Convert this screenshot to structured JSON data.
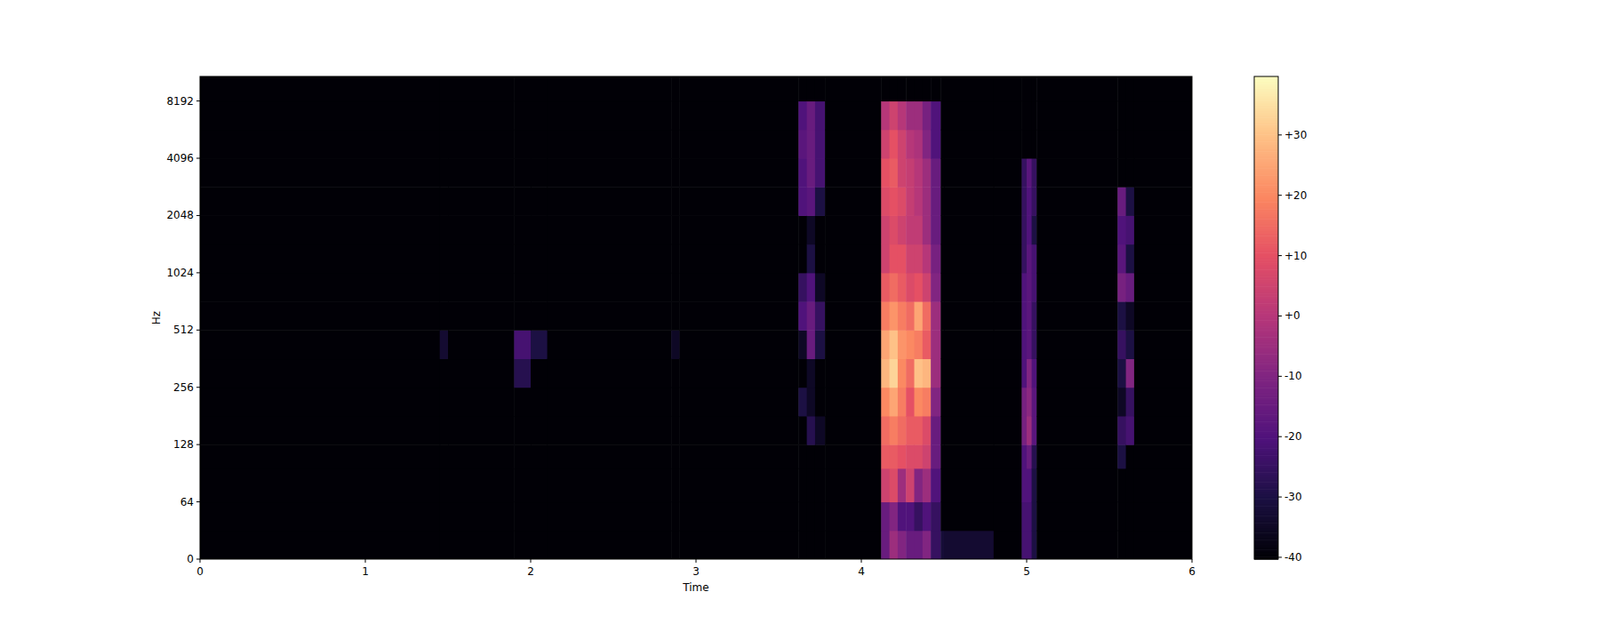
{
  "chart_data": {
    "type": "heatmap",
    "x_label": "Time",
    "y_label": "Hz",
    "log": "y",
    "xlim": [
      0,
      6
    ],
    "ylim": [
      0,
      11025
    ],
    "xticks": [
      0,
      1,
      2,
      3,
      4,
      5,
      6
    ],
    "yticks": [
      0,
      64,
      128,
      256,
      512,
      1024,
      2048,
      4096,
      8192
    ],
    "x_edges": [
      0,
      1.45,
      1.5,
      1.9,
      2.0,
      2.1,
      2.85,
      2.9,
      3.62,
      3.67,
      3.72,
      3.78,
      4.12,
      4.17,
      4.22,
      4.27,
      4.32,
      4.37,
      4.42,
      4.48,
      4.5,
      4.8,
      4.97,
      5.0,
      5.03,
      5.06,
      5.55,
      5.6,
      5.65,
      6.0
    ],
    "y_edges": [
      0,
      32,
      64,
      96,
      128,
      181,
      256,
      362,
      512,
      724,
      1024,
      1448,
      2048,
      2896,
      4096,
      5793,
      8192,
      11025
    ],
    "values": [
      [
        -40,
        -40,
        -40,
        -40,
        -40,
        -40,
        -40,
        -40,
        -40,
        -40,
        -40,
        -40,
        -40,
        -40,
        -40,
        -40,
        -40
      ],
      [
        -40,
        -40,
        -40,
        -40,
        -40,
        -40,
        -40,
        -33,
        -40,
        -40,
        -40,
        -40,
        -40,
        -40,
        -40,
        -40,
        -40
      ],
      [
        -40,
        -40,
        -40,
        -40,
        -40,
        -40,
        -40,
        -40,
        -40,
        -40,
        -40,
        -40,
        -40,
        -40,
        -40,
        -40,
        -40
      ],
      [
        -40,
        -40,
        -40,
        -40,
        -40,
        -40,
        -28,
        -22,
        -40,
        -40,
        -40,
        -40,
        -40,
        -40,
        -40,
        -40,
        -40
      ],
      [
        -40,
        -40,
        -40,
        -40,
        -40,
        -40,
        -40,
        -30,
        -40,
        -40,
        -40,
        -40,
        -40,
        -40,
        -40,
        -40,
        -40
      ],
      [
        -40,
        -40,
        -40,
        -40,
        -40,
        -40,
        -40,
        -40,
        -40,
        -40,
        -40,
        -40,
        -40,
        -40,
        -40,
        -40,
        -40
      ],
      [
        -40,
        -40,
        -40,
        -40,
        -40,
        -40,
        -40,
        -35,
        -40,
        -40,
        -40,
        -40,
        -40,
        -40,
        -40,
        -40,
        -40
      ],
      [
        -40,
        -40,
        -40,
        -40,
        -40,
        -40,
        -40,
        -40,
        -40,
        -40,
        -40,
        -40,
        -40,
        -40,
        -40,
        -40,
        -40
      ],
      [
        -40,
        -40,
        -40,
        -40,
        -40,
        -30,
        -40,
        -35,
        -20,
        -25,
        -40,
        -40,
        -20,
        -20,
        -18,
        -20,
        -40
      ],
      [
        -40,
        -40,
        -40,
        -40,
        -28,
        -35,
        -35,
        -15,
        -15,
        -20,
        -30,
        -35,
        -18,
        -15,
        -15,
        -15,
        -40
      ],
      [
        -40,
        -40,
        -40,
        -40,
        -35,
        -40,
        -40,
        -30,
        -25,
        -35,
        -40,
        -40,
        -30,
        -22,
        -22,
        -22,
        -40
      ],
      [
        -40,
        -40,
        -40,
        -40,
        -40,
        -40,
        -40,
        -40,
        -40,
        -40,
        -40,
        -40,
        -40,
        -40,
        -40,
        -40,
        -40
      ],
      [
        -15,
        -15,
        5,
        12,
        15,
        20,
        28,
        25,
        18,
        12,
        5,
        5,
        8,
        10,
        5,
        0,
        -40
      ],
      [
        -5,
        -10,
        8,
        12,
        18,
        25,
        33,
        30,
        22,
        15,
        10,
        8,
        10,
        12,
        10,
        5,
        -40
      ],
      [
        -10,
        -20,
        -5,
        10,
        15,
        18,
        20,
        22,
        18,
        12,
        10,
        5,
        8,
        5,
        5,
        0,
        -40
      ],
      [
        -15,
        -20,
        5,
        8,
        12,
        10,
        15,
        20,
        15,
        8,
        5,
        2,
        3,
        3,
        0,
        -5,
        -40
      ],
      [
        -15,
        -25,
        -10,
        8,
        12,
        20,
        30,
        18,
        25,
        10,
        5,
        2,
        0,
        0,
        -2,
        -5,
        -40
      ],
      [
        -10,
        -20,
        -5,
        5,
        8,
        18,
        28,
        12,
        15,
        5,
        0,
        -5,
        -5,
        -5,
        -10,
        -12,
        -40
      ],
      [
        -25,
        -25,
        -20,
        -15,
        -15,
        -10,
        -5,
        -5,
        -5,
        -10,
        -12,
        -15,
        -15,
        -15,
        -20,
        -20,
        -40
      ],
      [
        -32,
        -40,
        -40,
        -40,
        -40,
        -40,
        -40,
        -40,
        -40,
        -40,
        -40,
        -40,
        -40,
        -40,
        -40,
        -40,
        -40
      ],
      [
        -33,
        -40,
        -40,
        -40,
        -40,
        -40,
        -40,
        -40,
        -40,
        -40,
        -40,
        -40,
        -40,
        -40,
        -40,
        -40,
        -40
      ],
      [
        -40,
        -40,
        -40,
        -40,
        -40,
        -40,
        -40,
        -40,
        -40,
        -40,
        -40,
        -40,
        -40,
        -40,
        -40,
        -40,
        -40
      ],
      [
        -22,
        -22,
        -20,
        -20,
        -12,
        -12,
        -20,
        -20,
        -20,
        -20,
        -25,
        -25,
        -25,
        -25,
        -40,
        -40,
        -40
      ],
      [
        -22,
        -22,
        -20,
        -15,
        -5,
        -8,
        -10,
        -18,
        -18,
        -18,
        -18,
        -20,
        -20,
        -18,
        -40,
        -40,
        -40
      ],
      [
        -30,
        -30,
        -30,
        -28,
        -18,
        -18,
        -20,
        -25,
        -25,
        -22,
        -22,
        -30,
        -25,
        -25,
        -40,
        -40,
        -40
      ],
      [
        -40,
        -40,
        -40,
        -40,
        -40,
        -40,
        -40,
        -40,
        -40,
        -40,
        -40,
        -40,
        -40,
        -40,
        -40,
        -40,
        -40
      ],
      [
        -40,
        -40,
        -40,
        -30,
        -25,
        -35,
        -30,
        -25,
        -30,
        -12,
        -18,
        -20,
        -15,
        -40,
        -40,
        -40,
        -40
      ],
      [
        -40,
        -40,
        -40,
        -40,
        -22,
        -25,
        -10,
        -30,
        -35,
        -15,
        -30,
        -22,
        -30,
        -40,
        -40,
        -40,
        -40
      ],
      [
        -40,
        -40,
        -40,
        -40,
        -40,
        -40,
        -40,
        -40,
        -40,
        -40,
        -40,
        -40,
        -40,
        -40,
        -40,
        -40,
        -40
      ]
    ],
    "color_range": [
      -40.3,
      39.7
    ],
    "color_ticks": [
      -40,
      -30,
      -20,
      -10,
      {
        "value": 0,
        "label": "+0"
      },
      {
        "value": 10,
        "label": "+10"
      },
      {
        "value": 20,
        "label": "+20"
      },
      {
        "value": 30,
        "label": "+30"
      }
    ]
  }
}
